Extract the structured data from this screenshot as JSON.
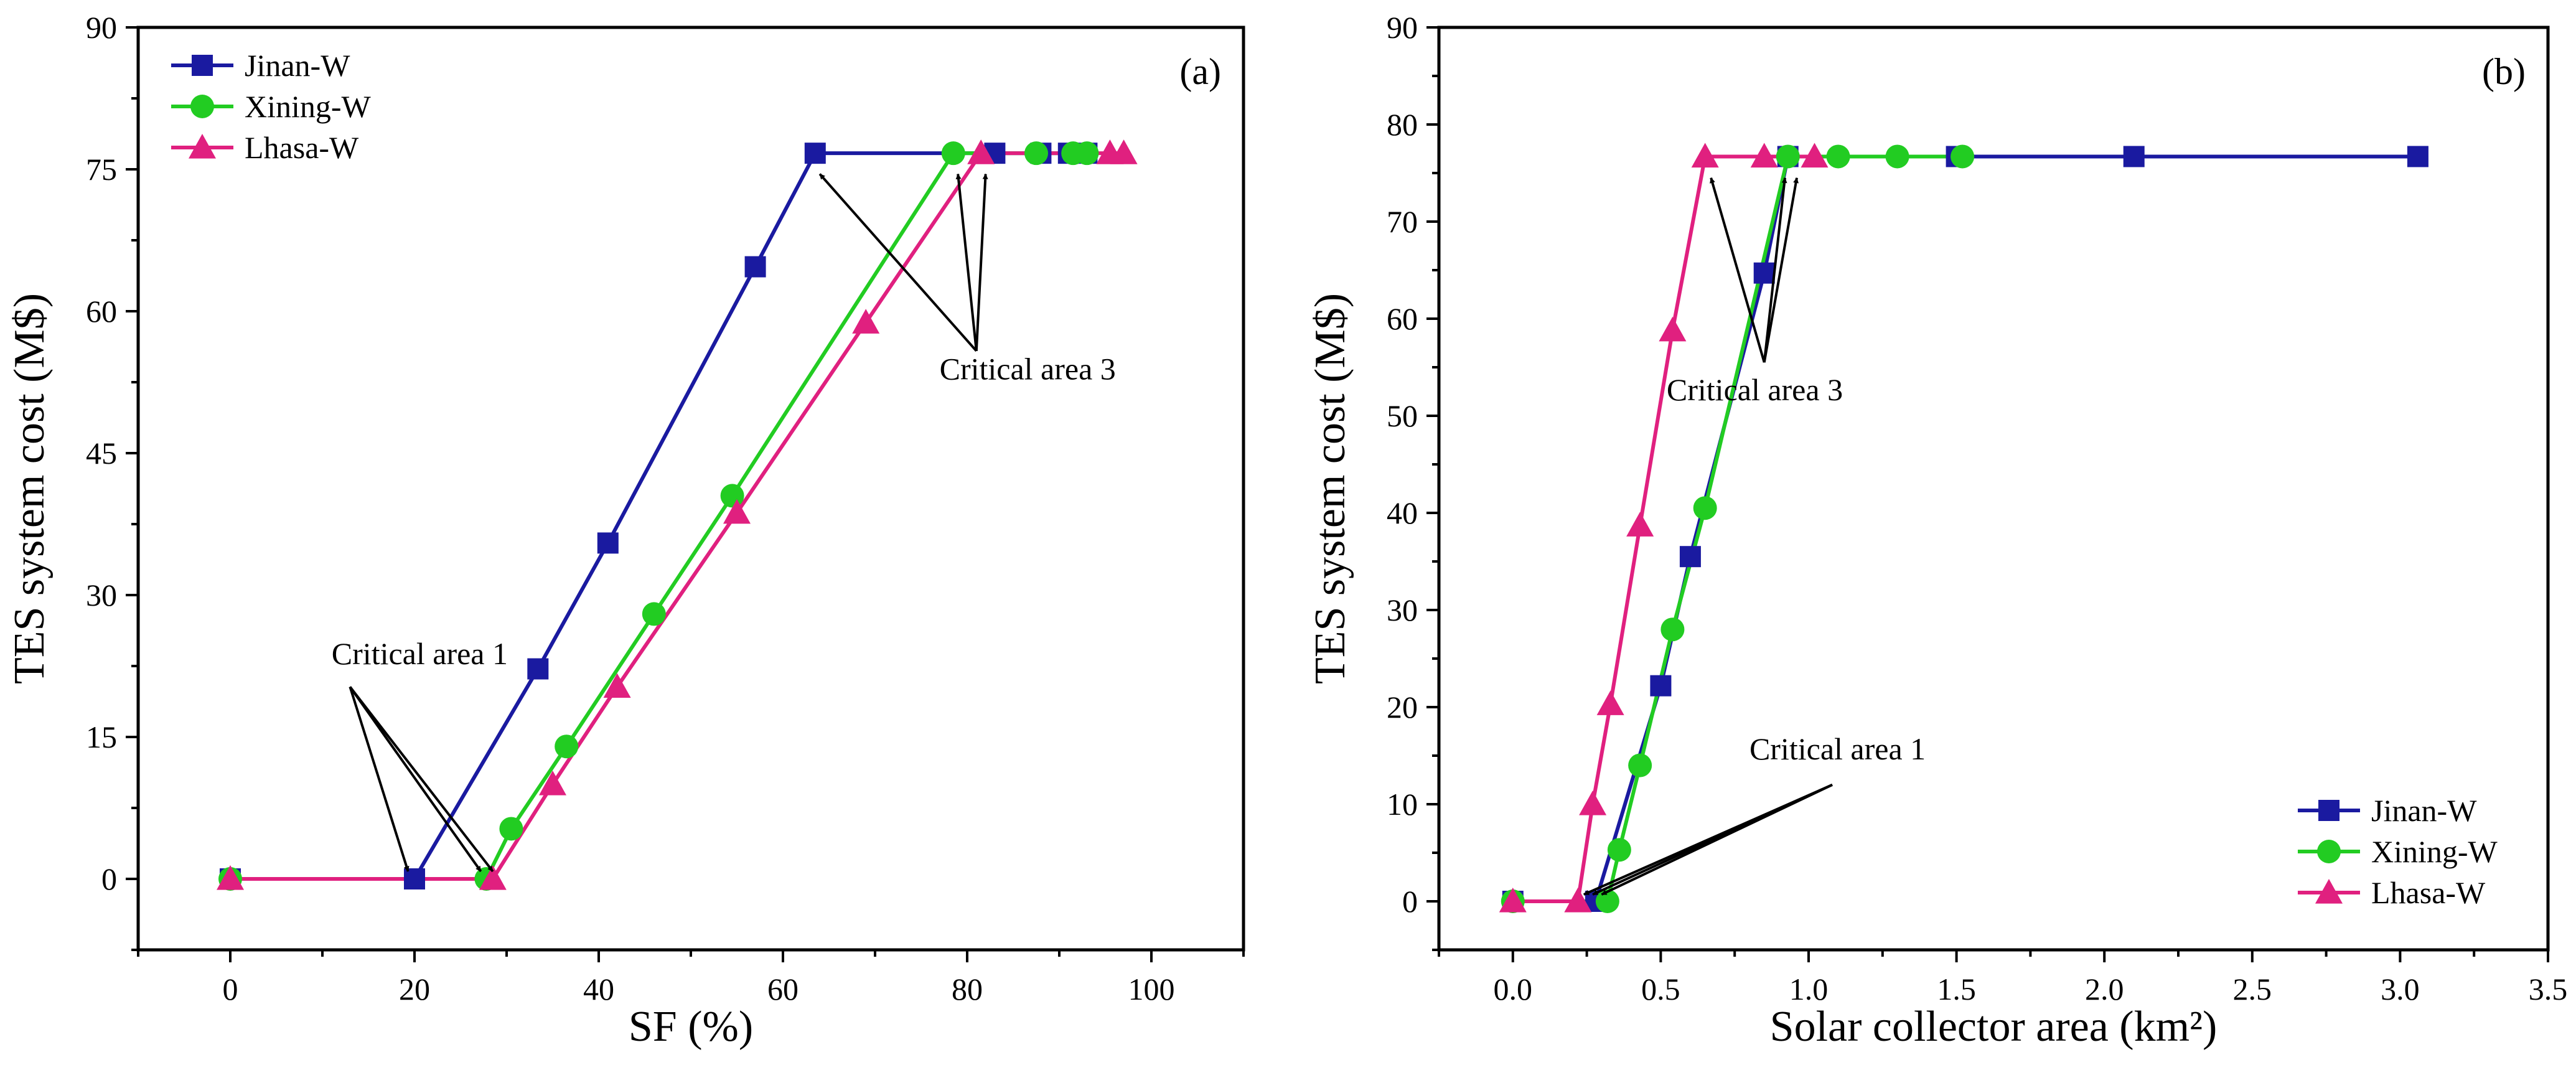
{
  "chart_data": [
    {
      "panel": "(a)",
      "type": "line",
      "xlabel": "SF (%)",
      "ylabel": "TES system cost (M$)",
      "xlim": [
        -10,
        110
      ],
      "ylim": [
        -7.5,
        90
      ],
      "xticks": [
        0,
        20,
        40,
        60,
        80,
        100
      ],
      "yticks": [
        0,
        15,
        30,
        45,
        60,
        75,
        90
      ],
      "legend_position": "top-left",
      "series": [
        {
          "name": "Jinan-W",
          "color": "#1a1aa0",
          "marker": "square",
          "x": [
            0,
            20,
            33.4,
            41,
            57,
            63.5,
            83,
            88,
            91,
            93
          ],
          "y": [
            0,
            0,
            22.2,
            35.5,
            64.7,
            76.7,
            76.7,
            76.7,
            76.7,
            76.7
          ]
        },
        {
          "name": "Xining-W",
          "color": "#22cc22",
          "marker": "circle",
          "x": [
            0,
            27.8,
            30.5,
            36.5,
            46,
            54.5,
            78.5,
            87.5,
            91.5,
            93
          ],
          "y": [
            0,
            0,
            5.3,
            14,
            28,
            40.5,
            76.7,
            76.7,
            76.7,
            76.7
          ]
        },
        {
          "name": "Lhasa-W",
          "color": "#e0207f",
          "marker": "triangle",
          "x": [
            0,
            28.5,
            35,
            42,
            55,
            69,
            81.5,
            95.5,
            97
          ],
          "y": [
            0,
            0,
            10,
            20.3,
            38.7,
            58.8,
            76.7,
            76.7,
            76.7
          ]
        }
      ],
      "annotations": [
        {
          "text": "Critical area 1",
          "label_at": [
            11,
            22.7
          ],
          "from": [
            13,
            20.3
          ],
          "targets": [
            [
              19.3,
              0.8
            ],
            [
              27.2,
              0.8
            ],
            [
              28.5,
              0.8
            ]
          ]
        },
        {
          "text": "Critical area 3",
          "label_at": [
            77,
            52.8
          ],
          "from": [
            81,
            55.8
          ],
          "targets": [
            [
              64,
              74.5
            ],
            [
              79,
              74.5
            ],
            [
              82,
              74.5
            ]
          ]
        }
      ]
    },
    {
      "panel": "(b)",
      "type": "line",
      "xlabel": "Solar collector area (km²)",
      "ylabel": "TES system cost (M$)",
      "xlim": [
        -0.25,
        3.5
      ],
      "ylim": [
        -5,
        90
      ],
      "xticks": [
        0.0,
        0.5,
        1.0,
        1.5,
        2.0,
        2.5,
        3.0,
        3.5
      ],
      "yticks": [
        0,
        10,
        20,
        30,
        40,
        50,
        60,
        70,
        80,
        90
      ],
      "legend_position": "bottom-right",
      "series": [
        {
          "name": "Jinan-W",
          "color": "#1a1aa0",
          "marker": "square",
          "x": [
            0,
            0.28,
            0.5,
            0.6,
            0.85,
            0.93,
            1.5,
            2.1,
            3.06
          ],
          "y": [
            0,
            0,
            22.2,
            35.5,
            64.7,
            76.7,
            76.7,
            76.7,
            76.7
          ]
        },
        {
          "name": "Xining-W",
          "color": "#22cc22",
          "marker": "circle",
          "x": [
            0,
            0.32,
            0.36,
            0.43,
            0.54,
            0.65,
            0.93,
            1.1,
            1.3,
            1.52
          ],
          "y": [
            0,
            0,
            5.3,
            14,
            28,
            40.5,
            76.7,
            76.7,
            76.7,
            76.7
          ]
        },
        {
          "name": "Lhasa-W",
          "color": "#e0207f",
          "marker": "triangle",
          "x": [
            0,
            0.22,
            0.27,
            0.33,
            0.43,
            0.54,
            0.65,
            0.85,
            1.02
          ],
          "y": [
            0,
            0,
            10,
            20.3,
            38.7,
            58.8,
            76.7,
            76.7,
            76.7
          ]
        }
      ],
      "annotations": [
        {
          "text": "Critical area 1",
          "label_at": [
            0.8,
            14.6
          ],
          "from": [
            1.08,
            12
          ],
          "targets": [
            [
              0.24,
              0.7
            ],
            [
              0.27,
              0.7
            ],
            [
              0.3,
              0.7
            ]
          ]
        },
        {
          "text": "Critical area 3",
          "label_at": [
            0.52,
            51.6
          ],
          "from": [
            0.85,
            55.5
          ],
          "targets": [
            [
              0.67,
              74.5
            ],
            [
              0.92,
              74.5
            ],
            [
              0.96,
              74.5
            ]
          ]
        }
      ]
    }
  ]
}
